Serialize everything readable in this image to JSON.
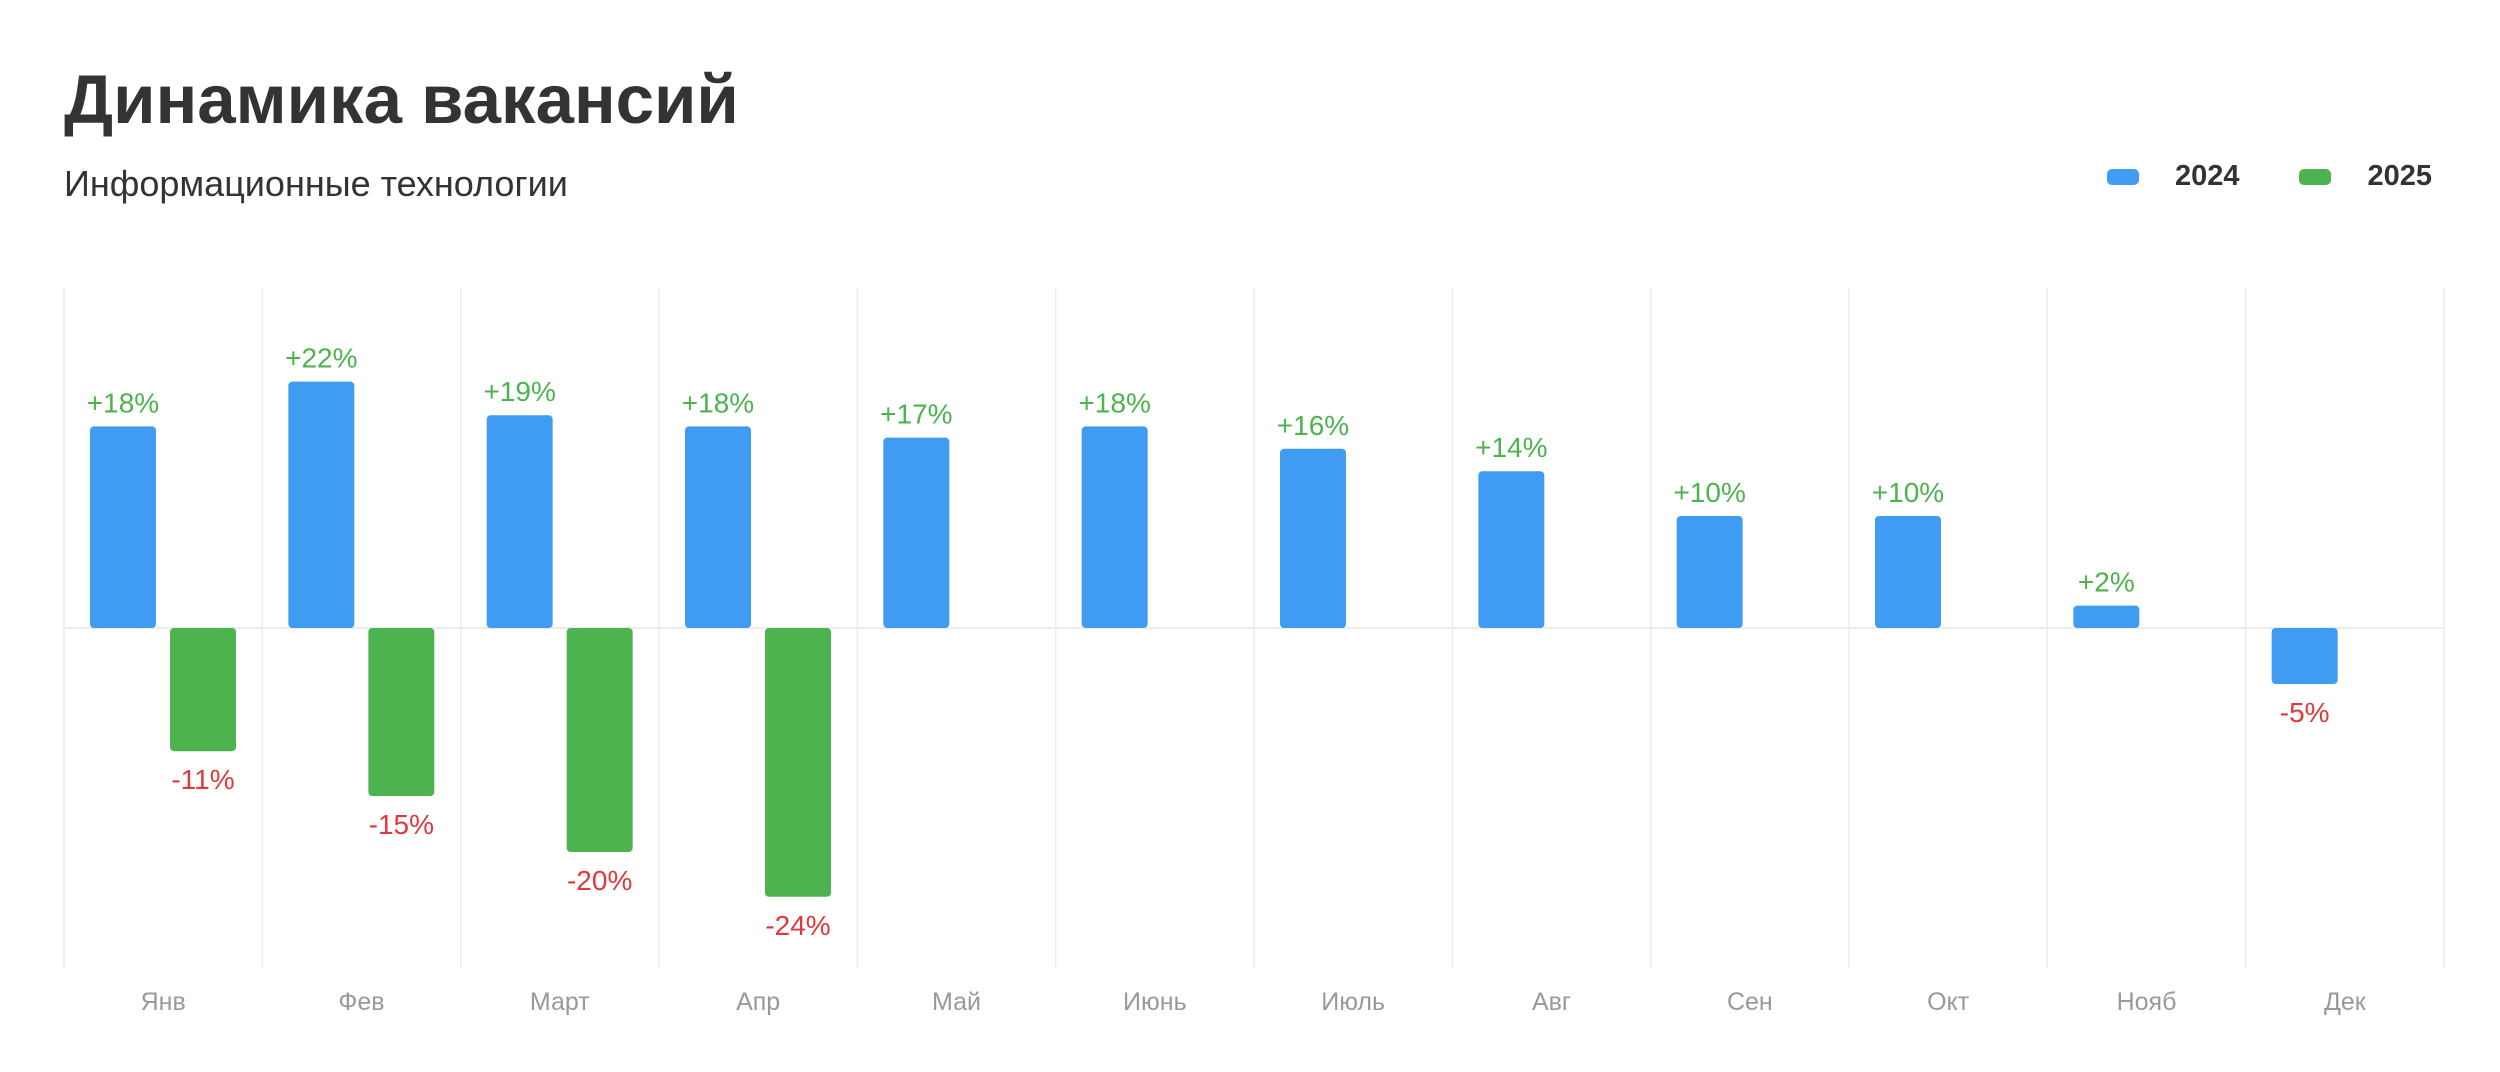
{
  "title": "Динамика вакансий",
  "subtitle": "Информационные технологии",
  "colors": {
    "series_2024": "#3f9cf2",
    "series_2025": "#4db34f",
    "label_positive": "#4db34f",
    "label_negative": "#e0393b",
    "grid": "#ececec",
    "axis_text": "#999999",
    "text": "#333333"
  },
  "legend": [
    {
      "label": "2024",
      "color": "#3f9cf2"
    },
    {
      "label": "2025",
      "color": "#4db34f"
    }
  ],
  "chart_data": {
    "type": "bar",
    "title": "Динамика вакансий",
    "subtitle": "Информационные технологии",
    "categories": [
      "Янв",
      "Фев",
      "Март",
      "Апр",
      "Май",
      "Июнь",
      "Июль",
      "Авг",
      "Сен",
      "Окт",
      "Нояб",
      "Дек"
    ],
    "series": [
      {
        "name": "2024",
        "values": [
          18,
          22,
          19,
          18,
          17,
          18,
          16,
          14,
          10,
          10,
          2,
          -5
        ]
      },
      {
        "name": "2025",
        "values": [
          -11,
          -15,
          -20,
          -24,
          null,
          null,
          null,
          null,
          null,
          null,
          null,
          null
        ]
      }
    ],
    "value_labels": {
      "2024": [
        "+18%",
        "+22%",
        "+19%",
        "+18%",
        "+17%",
        "+18%",
        "+16%",
        "+14%",
        "+10%",
        "+10%",
        "+2%",
        "-5%"
      ],
      "2025": [
        "-11%",
        "-15%",
        "-20%",
        "-24%",
        "",
        "",
        "",
        "",
        "",
        "",
        "",
        ""
      ]
    },
    "unit": "%",
    "ylim": [
      -30,
      30
    ],
    "grid": true,
    "legend_position": "top-right"
  }
}
